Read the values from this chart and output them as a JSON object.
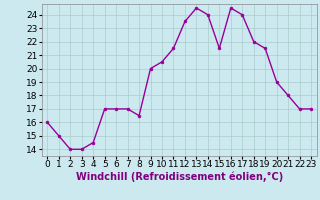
{
  "x": [
    0,
    1,
    2,
    3,
    4,
    5,
    6,
    7,
    8,
    9,
    10,
    11,
    12,
    13,
    14,
    15,
    16,
    17,
    18,
    19,
    20,
    21,
    22,
    23
  ],
  "y": [
    16,
    15,
    14,
    14,
    14.5,
    17,
    17,
    17,
    16.5,
    20,
    20.5,
    21.5,
    23.5,
    24.5,
    24.0,
    21.5,
    24.5,
    24.0,
    22,
    21.5,
    19,
    18,
    17,
    17
  ],
  "line_color": "#990099",
  "marker": "o",
  "marker_size": 2,
  "bg_color": "#cce9f0",
  "grid_color": "#aacccc",
  "xlabel": "Windchill (Refroidissement éolien,°C)",
  "xlabel_fontsize": 7,
  "xlabel_color": "#800080",
  "yticks": [
    14,
    15,
    16,
    17,
    18,
    19,
    20,
    21,
    22,
    23,
    24
  ],
  "xticks": [
    0,
    1,
    2,
    3,
    4,
    5,
    6,
    7,
    8,
    9,
    10,
    11,
    12,
    13,
    14,
    15,
    16,
    17,
    18,
    19,
    20,
    21,
    22,
    23
  ],
  "xlim": [
    -0.5,
    23.5
  ],
  "ylim": [
    13.5,
    24.8
  ],
  "tick_fontsize": 6.5,
  "linewidth": 1.0
}
